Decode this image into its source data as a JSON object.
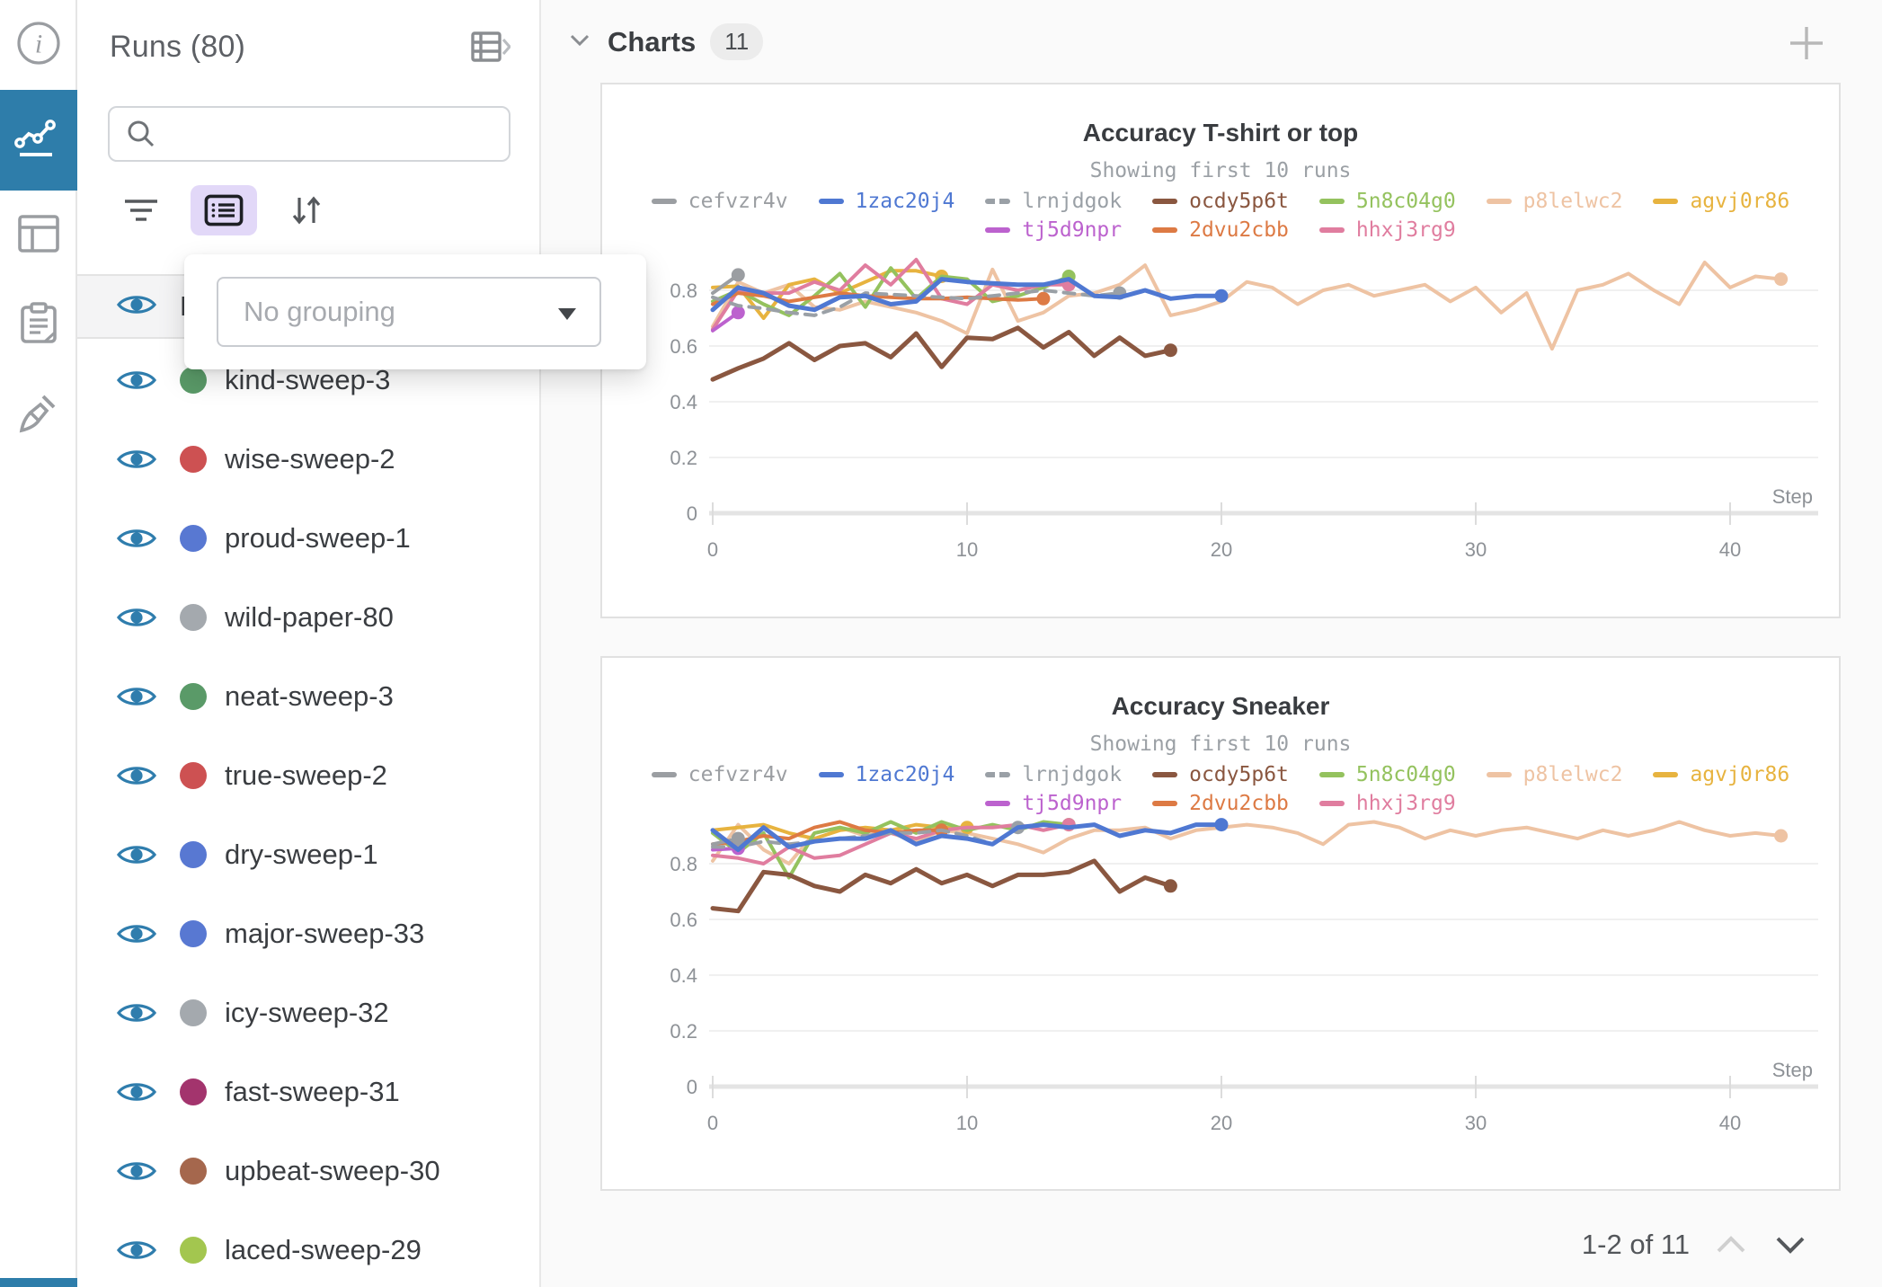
{
  "nav": {
    "items": [
      {
        "icon": "info-icon",
        "active": false
      },
      {
        "icon": "line-chart-icon",
        "active": true
      },
      {
        "icon": "table-panel-icon",
        "active": false
      },
      {
        "icon": "clipboard-icon",
        "active": false
      },
      {
        "icon": "broom-icon",
        "active": false
      }
    ],
    "active_color": "#2e7daa"
  },
  "runs_panel": {
    "title": "Runs (80)",
    "search": {
      "value": "",
      "placeholder": ""
    },
    "header_label": "Name",
    "grouping_popup": {
      "placeholder": "No grouping"
    },
    "eye_color": "#2f7dad",
    "runs": [
      {
        "name": "kind-sweep-3",
        "color": "#5a9a68"
      },
      {
        "name": "wise-sweep-2",
        "color": "#cd5152"
      },
      {
        "name": "proud-sweep-1",
        "color": "#5878d2"
      },
      {
        "name": "wild-paper-80",
        "color": "#a4a9ae"
      },
      {
        "name": "neat-sweep-3",
        "color": "#5a9a68"
      },
      {
        "name": "true-sweep-2",
        "color": "#cd5152"
      },
      {
        "name": "dry-sweep-1",
        "color": "#5878d2"
      },
      {
        "name": "major-sweep-33",
        "color": "#5878d2"
      },
      {
        "name": "icy-sweep-32",
        "color": "#a4a9ae"
      },
      {
        "name": "fast-sweep-31",
        "color": "#a3346d"
      },
      {
        "name": "upbeat-sweep-30",
        "color": "#a5674d"
      },
      {
        "name": "laced-sweep-29",
        "color": "#a3c64f"
      }
    ]
  },
  "charts_section": {
    "title": "Charts",
    "badge": "11",
    "pagination": {
      "label": "1-2 of 11"
    }
  },
  "chart_data": [
    {
      "type": "line",
      "title": "Accuracy T-shirt or top",
      "subtitle": "Showing first 10 runs",
      "xlabel": "Step",
      "ylim": [
        0,
        1
      ],
      "yticks": [
        0,
        0.2,
        0.4,
        0.6,
        0.8
      ],
      "xticks": [
        0,
        10,
        20,
        30,
        40
      ],
      "grid": true,
      "legend_position": "top",
      "draw_order": [
        5,
        6,
        4,
        9,
        7,
        8,
        2,
        0,
        3,
        1
      ],
      "series": [
        {
          "name": "cefvzr4v",
          "color": "#9b9ea2",
          "values": [
            0.79,
            0.855
          ]
        },
        {
          "name": "1zac20j4",
          "color": "#4f78d2",
          "width": 5,
          "values": [
            0.73,
            0.81,
            0.79,
            0.745,
            0.73,
            0.775,
            0.78,
            0.75,
            0.76,
            0.84,
            0.83,
            0.825,
            0.82,
            0.82,
            0.84,
            0.78,
            0.775,
            0.8,
            0.77,
            0.78,
            0.78
          ]
        },
        {
          "name": "lrnjdgok",
          "color": "#9aa0a6",
          "dash": true,
          "values": [
            0.775,
            0.745,
            0.735,
            0.72,
            0.71,
            0.74,
            0.79,
            0.785,
            0.78,
            0.775,
            0.77,
            0.78,
            0.79,
            0.8,
            0.79,
            0.78,
            0.79
          ]
        },
        {
          "name": "ocdy5p6t",
          "color": "#8a5740",
          "width": 5,
          "values": [
            0.48,
            0.52,
            0.555,
            0.61,
            0.55,
            0.6,
            0.61,
            0.56,
            0.645,
            0.525,
            0.63,
            0.625,
            0.665,
            0.595,
            0.65,
            0.565,
            0.63,
            0.565,
            0.585
          ]
        },
        {
          "name": "5n8c04g0",
          "color": "#94c25e",
          "values": [
            0.76,
            0.8,
            0.75,
            0.71,
            0.78,
            0.86,
            0.74,
            0.88,
            0.77,
            0.85,
            0.84,
            0.76,
            0.78,
            0.81,
            0.85
          ]
        },
        {
          "name": "p8lelwc2",
          "color": "#eec3a3",
          "values": [
            0.67,
            0.83,
            0.79,
            0.82,
            0.74,
            0.73,
            0.76,
            0.74,
            0.72,
            0.69,
            0.645,
            0.875,
            0.69,
            0.72,
            0.78,
            0.79,
            0.82,
            0.89,
            0.71,
            0.73,
            0.76,
            0.83,
            0.81,
            0.75,
            0.8,
            0.82,
            0.78,
            0.8,
            0.82,
            0.76,
            0.81,
            0.72,
            0.79,
            0.59,
            0.8,
            0.82,
            0.86,
            0.8,
            0.75,
            0.9,
            0.81,
            0.85,
            0.84
          ]
        },
        {
          "name": "agvj0r86",
          "color": "#e7b33f",
          "values": [
            0.81,
            0.815,
            0.7,
            0.82,
            0.84,
            0.79,
            0.83,
            0.87,
            0.87,
            0.85
          ]
        },
        {
          "name": "tj5d9npr",
          "color": "#bc62ce",
          "values": [
            0.655,
            0.72
          ]
        },
        {
          "name": "2dvu2cbb",
          "color": "#dd7a44",
          "values": [
            0.75,
            0.79,
            0.78,
            0.76,
            0.775,
            0.79,
            0.78,
            0.775,
            0.77,
            0.77,
            0.775,
            0.77,
            0.765,
            0.77
          ]
        },
        {
          "name": "hhxj3rg9",
          "color": "#e07d9f",
          "values": [
            0.66,
            0.8,
            0.79,
            0.79,
            0.83,
            0.8,
            0.89,
            0.82,
            0.91,
            0.77,
            0.75,
            0.82,
            0.8,
            0.82,
            0.82
          ]
        }
      ]
    },
    {
      "type": "line",
      "title": "Accuracy Sneaker",
      "subtitle": "Showing first 10 runs",
      "xlabel": "Step",
      "ylim": [
        0,
        1
      ],
      "yticks": [
        0,
        0.2,
        0.4,
        0.6,
        0.8
      ],
      "xticks": [
        0,
        10,
        20,
        30,
        40
      ],
      "grid": true,
      "legend_position": "top",
      "draw_order": [
        5,
        6,
        4,
        9,
        7,
        8,
        2,
        0,
        3,
        1
      ],
      "series": [
        {
          "name": "cefvzr4v",
          "color": "#9b9ea2",
          "values": [
            0.87,
            0.89
          ]
        },
        {
          "name": "1zac20j4",
          "color": "#4f78d2",
          "width": 5,
          "values": [
            0.92,
            0.85,
            0.93,
            0.86,
            0.88,
            0.89,
            0.89,
            0.92,
            0.87,
            0.9,
            0.89,
            0.87,
            0.93,
            0.94,
            0.93,
            0.94,
            0.9,
            0.92,
            0.91,
            0.94,
            0.94
          ]
        },
        {
          "name": "lrnjdgok",
          "color": "#9aa0a6",
          "dash": true,
          "values": [
            0.86,
            0.86,
            0.88,
            0.87,
            0.88,
            0.89,
            0.9,
            0.91,
            0.91,
            0.92,
            0.9,
            0.87,
            0.93
          ]
        },
        {
          "name": "ocdy5p6t",
          "color": "#8a5740",
          "width": 5,
          "values": [
            0.64,
            0.63,
            0.77,
            0.76,
            0.72,
            0.7,
            0.76,
            0.73,
            0.78,
            0.73,
            0.76,
            0.72,
            0.76,
            0.76,
            0.77,
            0.81,
            0.7,
            0.75,
            0.72
          ]
        },
        {
          "name": "5n8c04g0",
          "color": "#94c25e",
          "values": [
            0.91,
            0.84,
            0.91,
            0.75,
            0.91,
            0.93,
            0.91,
            0.95,
            0.91,
            0.95,
            0.92,
            0.94,
            0.92,
            0.95,
            0.94
          ]
        },
        {
          "name": "p8lelwc2",
          "color": "#eec3a3",
          "values": [
            0.81,
            0.94,
            0.85,
            0.8,
            0.91,
            0.93,
            0.9,
            0.91,
            0.88,
            0.92,
            0.91,
            0.89,
            0.87,
            0.84,
            0.89,
            0.92,
            0.92,
            0.93,
            0.89,
            0.92,
            0.93,
            0.94,
            0.93,
            0.91,
            0.87,
            0.94,
            0.95,
            0.93,
            0.89,
            0.92,
            0.9,
            0.92,
            0.93,
            0.91,
            0.89,
            0.92,
            0.9,
            0.92,
            0.95,
            0.92,
            0.9,
            0.91,
            0.9
          ]
        },
        {
          "name": "agvj0r86",
          "color": "#e7b33f",
          "values": [
            0.92,
            0.93,
            0.94,
            0.91,
            0.89,
            0.92,
            0.93,
            0.92,
            0.94,
            0.93,
            0.93
          ]
        },
        {
          "name": "tj5d9npr",
          "color": "#bc62ce",
          "values": [
            0.85,
            0.855
          ]
        },
        {
          "name": "2dvu2cbb",
          "color": "#dd7a44",
          "values": [
            0.87,
            0.88,
            0.9,
            0.89,
            0.93,
            0.95,
            0.92,
            0.91,
            0.92,
            0.92
          ]
        },
        {
          "name": "hhxj3rg9",
          "color": "#e07d9f",
          "values": [
            0.83,
            0.82,
            0.8,
            0.86,
            0.82,
            0.83,
            0.87,
            0.91,
            0.89,
            0.92,
            0.93,
            0.93,
            0.94,
            0.92,
            0.94
          ]
        }
      ]
    }
  ]
}
